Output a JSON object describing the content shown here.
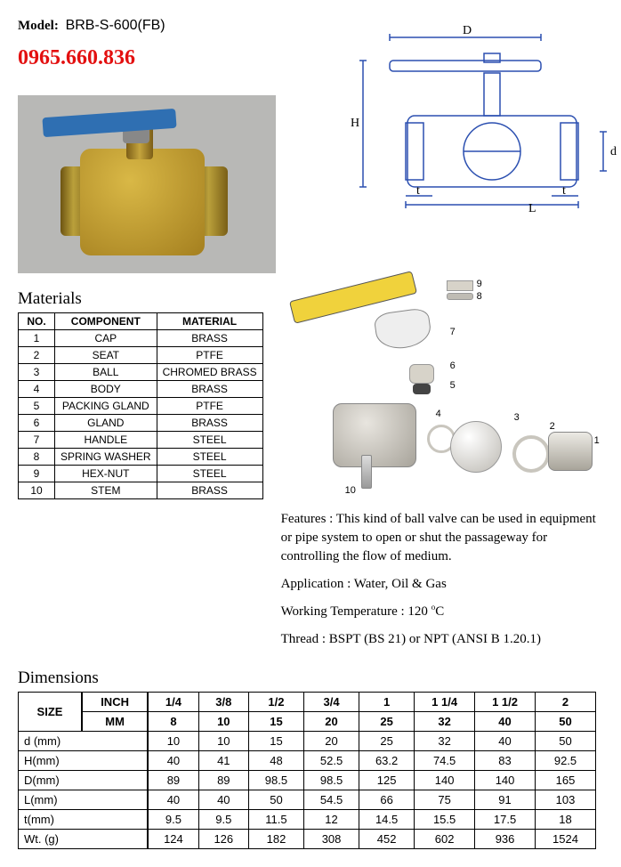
{
  "model_label": "Model:",
  "model_value": "BRB-S-600(FB)",
  "phone": "0965.660.836",
  "photo": {
    "body_color": "#c9a436",
    "handle_color": "#2f6fb2",
    "bg": "#b8b8b6"
  },
  "dimension_diagram": {
    "labels": {
      "D": "D",
      "H": "H",
      "d": "d",
      "L": "L",
      "t": "t"
    },
    "stroke": "#2b4fb0",
    "fill": "#2b4fb0"
  },
  "materials": {
    "title": "Materials",
    "columns": [
      "NO.",
      "COMPONENT",
      "MATERIAL"
    ],
    "rows": [
      [
        "1",
        "CAP",
        "BRASS"
      ],
      [
        "2",
        "SEAT",
        "PTFE"
      ],
      [
        "3",
        "BALL",
        "CHROMED BRASS"
      ],
      [
        "4",
        "BODY",
        "BRASS"
      ],
      [
        "5",
        "PACKING GLAND",
        "PTFE"
      ],
      [
        "6",
        "GLAND",
        "BRASS"
      ],
      [
        "7",
        "HANDLE",
        "STEEL"
      ],
      [
        "8",
        "SPRING WASHER",
        "STEEL"
      ],
      [
        "9",
        "HEX-NUT",
        "STEEL"
      ],
      [
        "10",
        "STEM",
        "BRASS"
      ]
    ]
  },
  "features": {
    "features_text": "Features : This kind of ball valve can be used in equipment or pipe system to open or shut the passageway for controlling the flow of medium.",
    "application_text": "Application : Water, Oil & Gas",
    "temperature_prefix": "Working Temperature : 120 ",
    "temperature_unit": "C",
    "thread_text": "Thread : BSPT (BS 21) or NPT (ANSI B 1.20.1)"
  },
  "exploded": {
    "labels": [
      "1",
      "2",
      "3",
      "4",
      "5",
      "6",
      "7",
      "8",
      "9",
      "10"
    ],
    "handle_color": "#f0d23c"
  },
  "dimensions": {
    "title": "Dimensions",
    "size_label": "SIZE",
    "inch_label": "INCH",
    "mm_label": "MM",
    "inch_values": [
      "1/4",
      "3/8",
      "1/2",
      "3/4",
      "1",
      "1 1/4",
      "1 1/2",
      "2"
    ],
    "mm_values": [
      "8",
      "10",
      "15",
      "20",
      "25",
      "32",
      "40",
      "50"
    ],
    "rows": [
      {
        "label": "d (mm)",
        "vals": [
          "10",
          "10",
          "15",
          "20",
          "25",
          "32",
          "40",
          "50"
        ]
      },
      {
        "label": "H(mm)",
        "vals": [
          "40",
          "41",
          "48",
          "52.5",
          "63.2",
          "74.5",
          "83",
          "92.5"
        ]
      },
      {
        "label": "D(mm)",
        "vals": [
          "89",
          "89",
          "98.5",
          "98.5",
          "125",
          "140",
          "140",
          "165"
        ]
      },
      {
        "label": "L(mm)",
        "vals": [
          "40",
          "40",
          "50",
          "54.5",
          "66",
          "75",
          "91",
          "103"
        ]
      },
      {
        "label": "t(mm)",
        "vals": [
          "9.5",
          "9.5",
          "11.5",
          "12",
          "14.5",
          "15.5",
          "17.5",
          "18"
        ]
      },
      {
        "label": "Wt. (g)",
        "vals": [
          "124",
          "126",
          "182",
          "308",
          "452",
          "602",
          "936",
          "1524"
        ]
      }
    ]
  }
}
